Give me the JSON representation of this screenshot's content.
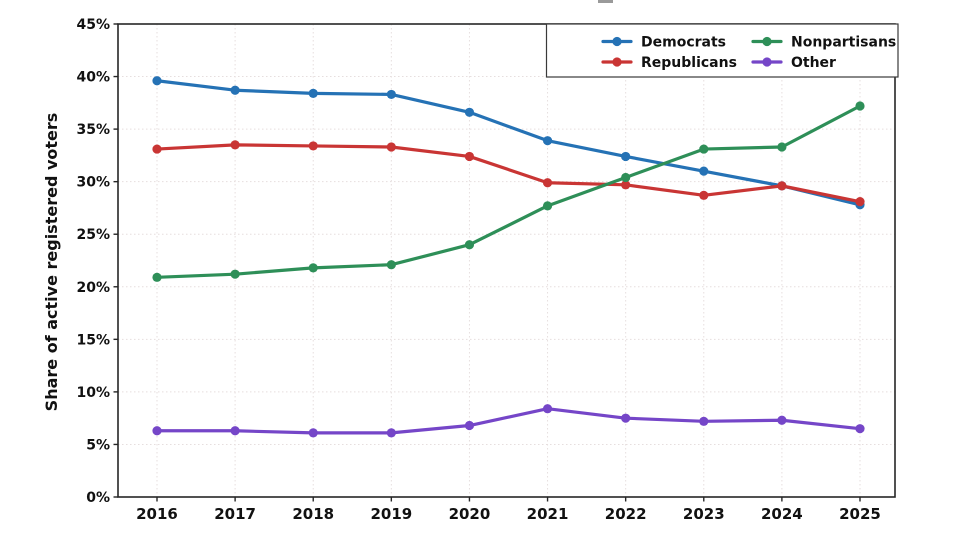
{
  "figure": {
    "background": "#ffffff",
    "spine_color": "#262626",
    "grid_color": "#e6dede",
    "text_color": "#111111"
  },
  "chart_data": {
    "type": "line",
    "title": "",
    "xlabel": "",
    "ylabel": "Share of active registered voters",
    "x_categories": [
      "2016",
      "2017",
      "2018",
      "2019",
      "2020",
      "2021",
      "2022",
      "2023",
      "2024",
      "2025"
    ],
    "ylim": [
      0,
      45
    ],
    "y_ticks": [
      0,
      5,
      10,
      15,
      20,
      25,
      30,
      35,
      40,
      45
    ],
    "y_tick_labels": [
      "0%",
      "5%",
      "10%",
      "15%",
      "20%",
      "25%",
      "30%",
      "35%",
      "40%",
      "45%"
    ],
    "grid": true,
    "legend": {
      "position": "upper-right",
      "columns": 2,
      "entries": [
        "Democrats",
        "Republicans",
        "Nonpartisans",
        "Other"
      ]
    },
    "series": [
      {
        "name": "Democrats",
        "color": "#2572b5",
        "values": [
          39.6,
          38.7,
          38.4,
          38.3,
          36.6,
          33.9,
          32.4,
          31.0,
          29.6,
          27.8
        ]
      },
      {
        "name": "Republicans",
        "color": "#c93534",
        "values": [
          33.1,
          33.5,
          33.4,
          33.3,
          32.4,
          29.9,
          29.7,
          28.7,
          29.6,
          28.1
        ]
      },
      {
        "name": "Nonpartisans",
        "color": "#2e8f58",
        "values": [
          20.9,
          21.2,
          21.8,
          22.1,
          24.0,
          27.7,
          30.4,
          33.1,
          33.3,
          37.2
        ]
      },
      {
        "name": "Other",
        "color": "#7546c8",
        "values": [
          6.3,
          6.3,
          6.1,
          6.1,
          6.8,
          8.4,
          7.5,
          7.2,
          7.3,
          6.5
        ]
      }
    ]
  }
}
